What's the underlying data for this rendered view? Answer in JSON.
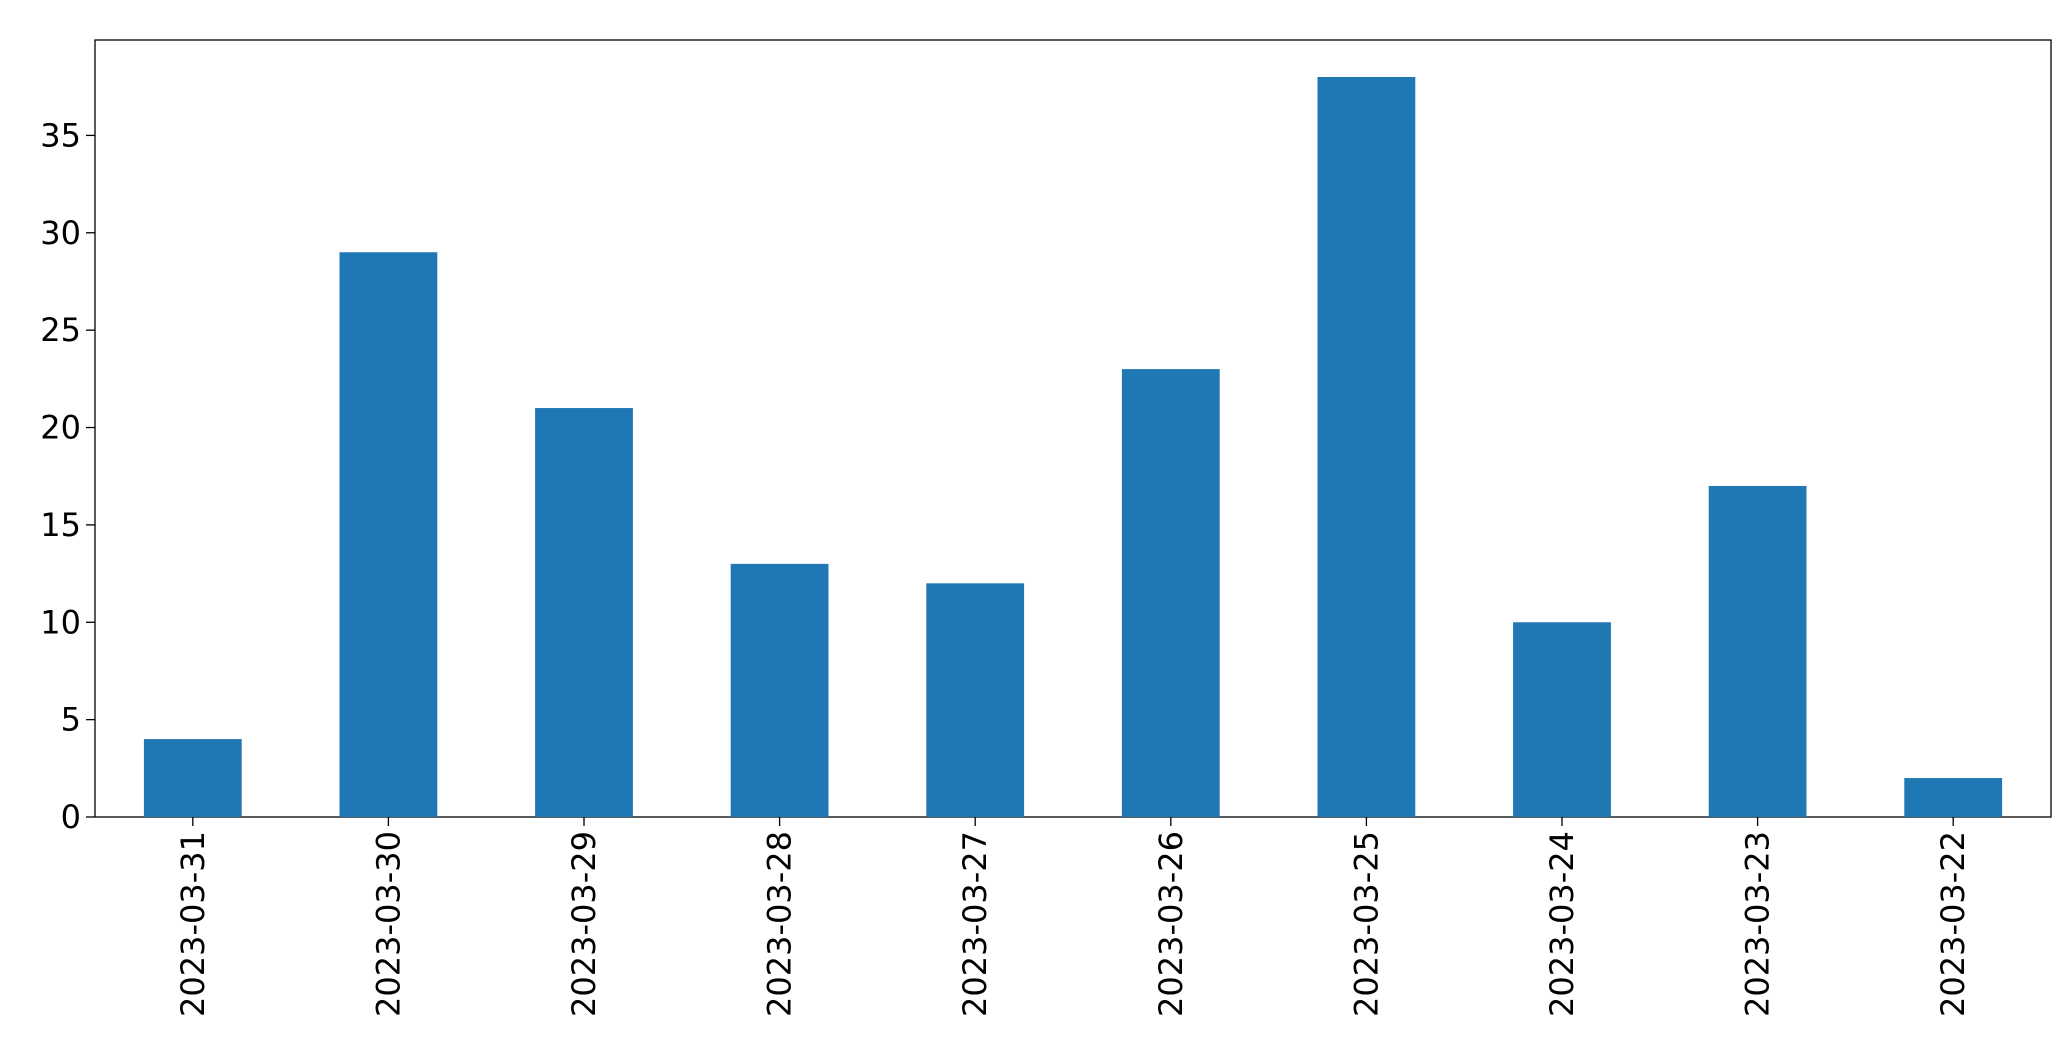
{
  "chart_data": {
    "type": "bar",
    "categories": [
      "2023-03-31",
      "2023-03-30",
      "2023-03-29",
      "2023-03-28",
      "2023-03-27",
      "2023-03-26",
      "2023-03-25",
      "2023-03-24",
      "2023-03-23",
      "2023-03-22"
    ],
    "values": [
      4,
      29,
      21,
      13,
      12,
      23,
      38,
      10,
      17,
      2
    ],
    "color": "#1f77b4",
    "ylim": [
      0,
      39.9
    ],
    "yticks": [
      0,
      5,
      10,
      15,
      20,
      25,
      30,
      35
    ],
    "grid": false
  }
}
